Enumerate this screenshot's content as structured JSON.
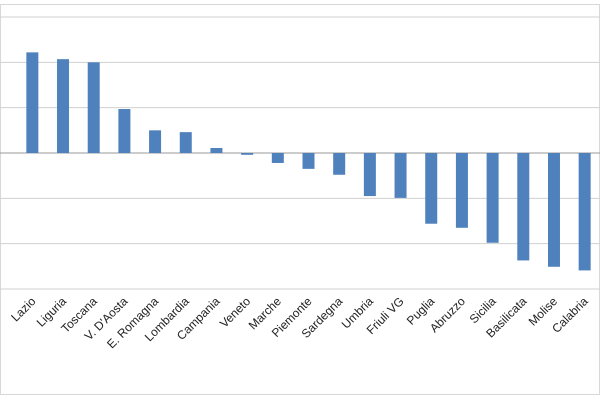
{
  "chart_data": {
    "type": "bar",
    "categories": [
      "Lazio",
      "Liguria",
      "Toscana",
      "V. D'Aosta",
      "E. Romagna",
      "Lombardia",
      "Campania",
      "Veneto",
      "Marche",
      "Piemonte",
      "Sardegna",
      "Umbria",
      "Friuli VG",
      "Puglia",
      "Abruzzo",
      "Sicilia",
      "Basilicata",
      "Molise",
      "Calabria"
    ],
    "values": [
      2.22,
      2.07,
      2.0,
      0.97,
      0.5,
      0.46,
      0.11,
      -0.04,
      -0.22,
      -0.35,
      -0.48,
      -0.95,
      -0.99,
      -1.56,
      -1.65,
      -1.98,
      -2.37,
      -2.51,
      -2.59
    ],
    "color": "#4f81bd",
    "ylim": [
      -3,
      3
    ],
    "yticks": [
      -3,
      -2,
      -1,
      0,
      1,
      2,
      3
    ],
    "grid": true
  }
}
